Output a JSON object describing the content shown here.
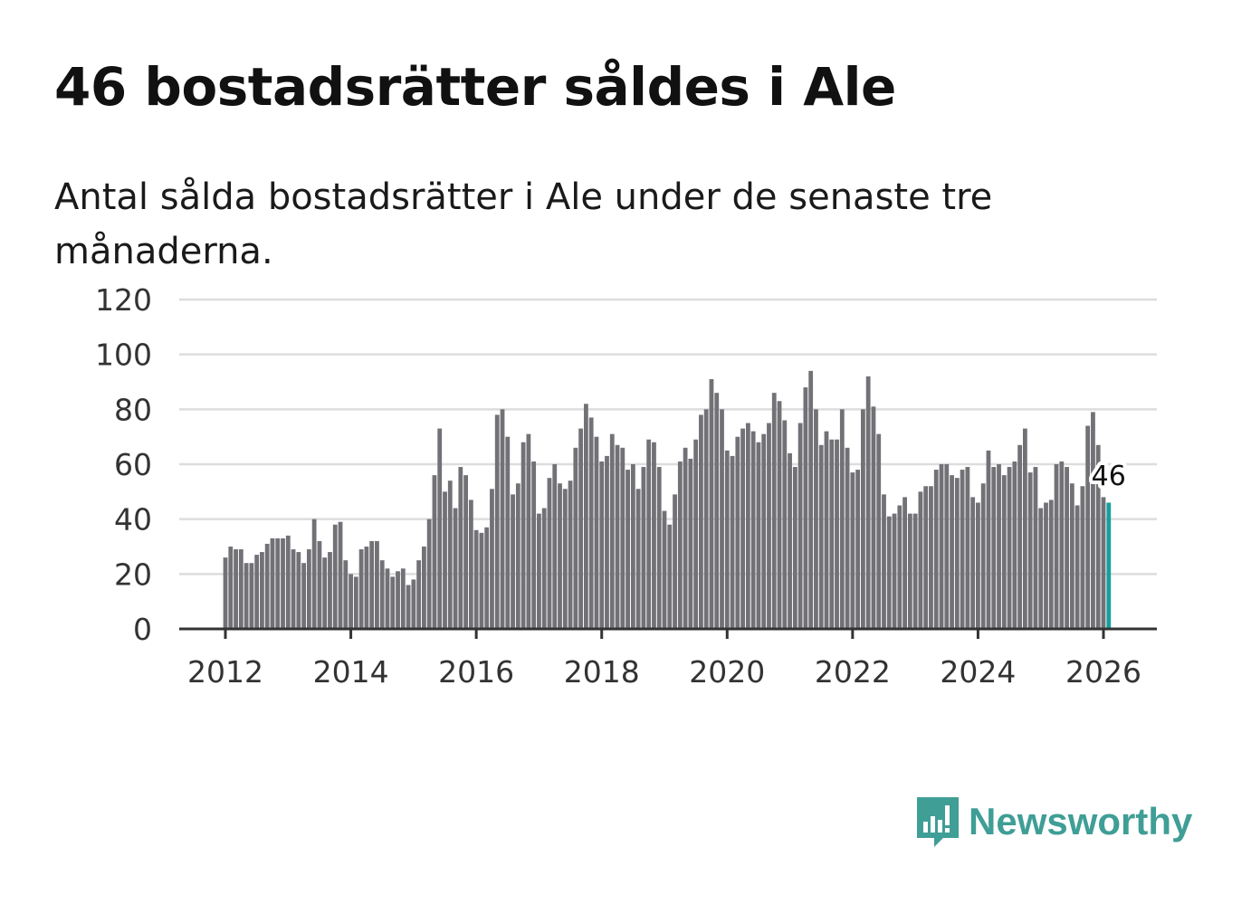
{
  "title": "46 bostadsrätter såldes i Ale",
  "subtitle": "Antal sålda bostadsrätter i Ale under de senaste tre månaderna.",
  "logo_text": "Newsworthy",
  "colors": {
    "bar": "#727176",
    "highlight": "#16a09a",
    "grid": "#dddddd",
    "axis": "#333333",
    "brand": "#3f9e96"
  },
  "chart_data": {
    "type": "bar",
    "title": "46 bostadsrätter såldes i Ale",
    "xlabel": "",
    "ylabel": "",
    "ylim": [
      0,
      120
    ],
    "yticks": [
      0,
      20,
      40,
      60,
      80,
      100,
      120
    ],
    "xticks": [
      "2012",
      "2014",
      "2016",
      "2018",
      "2020",
      "2022",
      "2024",
      "2026"
    ],
    "start": "2012-01",
    "frequency": "monthly",
    "grid": true,
    "values": [
      26,
      30,
      29,
      29,
      24,
      24,
      27,
      28,
      31,
      33,
      33,
      33,
      34,
      29,
      28,
      24,
      29,
      40,
      32,
      26,
      28,
      38,
      39,
      25,
      20,
      19,
      29,
      30,
      32,
      32,
      25,
      22,
      19,
      21,
      22,
      16,
      18,
      25,
      30,
      40,
      56,
      73,
      50,
      54,
      44,
      59,
      56,
      47,
      36,
      35,
      37,
      51,
      78,
      80,
      70,
      49,
      53,
      68,
      71,
      61,
      42,
      44,
      55,
      60,
      53,
      51,
      54,
      66,
      73,
      82,
      77,
      70,
      61,
      63,
      71,
      67,
      66,
      58,
      60,
      51,
      59,
      69,
      68,
      59,
      43,
      38,
      49,
      61,
      66,
      62,
      69,
      78,
      80,
      91,
      86,
      80,
      65,
      63,
      70,
      73,
      75,
      72,
      68,
      71,
      75,
      86,
      83,
      76,
      64,
      59,
      75,
      88,
      94,
      80,
      67,
      72,
      69,
      69,
      80,
      66,
      57,
      58,
      80,
      92,
      81,
      71,
      49,
      41,
      42,
      45,
      48,
      42,
      42,
      50,
      52,
      52,
      58,
      60,
      60,
      56,
      55,
      58,
      59,
      48,
      46,
      53,
      65,
      59,
      60,
      56,
      59,
      61,
      67,
      73,
      57,
      59,
      44,
      46,
      47,
      60,
      61,
      59,
      53,
      45,
      52,
      74,
      79,
      67,
      48,
      46
    ],
    "highlight_label": "46"
  }
}
